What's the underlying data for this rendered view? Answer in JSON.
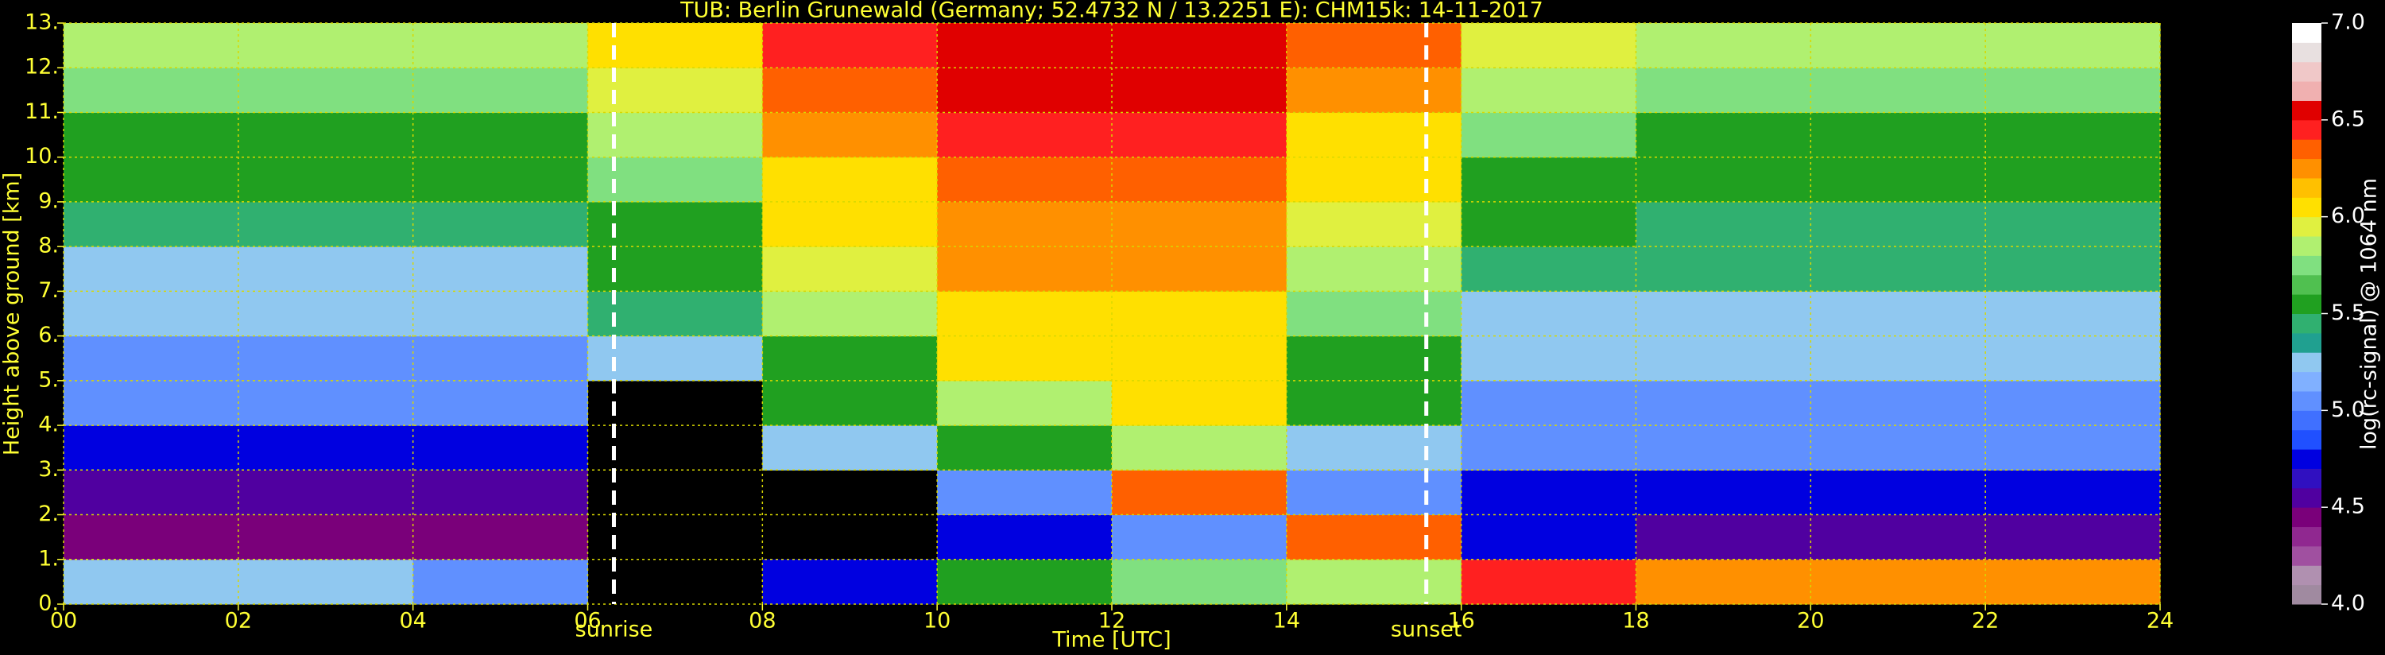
{
  "chart_data": {
    "type": "heatmap",
    "title": "TUB: Berlin Grunewald (Germany; 52.4732 N / 13.2251 E):    CHM15k: 14-11-2017",
    "xlabel": "Time [UTC]",
    "ylabel": "Height above ground [km]",
    "colorbar_label": "log(rc-signal) @ 1064 nm",
    "xlim": [
      0,
      24
    ],
    "ylim": [
      0,
      13
    ],
    "xticks": [
      {
        "value": 0,
        "label": "00"
      },
      {
        "value": 2,
        "label": "02"
      },
      {
        "value": 4,
        "label": "04"
      },
      {
        "value": 6,
        "label": "06"
      },
      {
        "value": 8,
        "label": "08"
      },
      10,
      12,
      14,
      16,
      18,
      20,
      22,
      24
    ],
    "yticks": [
      {
        "value": 0,
        "label": "0."
      },
      {
        "value": 1,
        "label": "1."
      },
      {
        "value": 2,
        "label": "2."
      },
      {
        "value": 3,
        "label": "3."
      },
      {
        "value": 4,
        "label": "4."
      },
      {
        "value": 5,
        "label": "5."
      },
      {
        "value": 6,
        "label": "6."
      },
      {
        "value": 7,
        "label": "7."
      },
      {
        "value": 8,
        "label": "8."
      },
      {
        "value": 9,
        "label": "9."
      },
      {
        "value": 10,
        "label": "10."
      },
      {
        "value": 11,
        "label": "11."
      },
      {
        "value": 12,
        "label": "12."
      },
      {
        "value": 13,
        "label": "13."
      }
    ],
    "grid": true,
    "grid_color": "#d8d800",
    "text_color": "#ffff33",
    "xbins": [
      0,
      2,
      4,
      6,
      8,
      10,
      12,
      14,
      16,
      18,
      20,
      22,
      24
    ],
    "ybins": [
      0,
      1,
      2,
      3,
      4,
      5,
      6,
      7,
      8,
      9,
      10,
      11,
      12,
      13
    ],
    "z": [
      [
        5.2,
        5.2,
        5.1,
        null,
        4.8,
        5.5,
        5.7,
        5.8,
        6.4,
        6.2,
        6.2,
        6.2
      ],
      [
        4.4,
        4.4,
        4.4,
        null,
        null,
        4.8,
        5.0,
        6.3,
        4.7,
        4.6,
        4.6,
        4.6
      ],
      [
        4.6,
        4.6,
        4.6,
        null,
        null,
        5.0,
        6.3,
        5.0,
        4.8,
        4.8,
        4.8,
        4.8
      ],
      [
        4.8,
        4.8,
        4.8,
        null,
        5.2,
        5.6,
        5.8,
        5.3,
        5.0,
        5.0,
        5.0,
        5.0
      ],
      [
        5.0,
        5.0,
        5.0,
        null,
        5.5,
        5.8,
        6.0,
        5.5,
        5.1,
        5.1,
        5.1,
        5.1
      ],
      [
        5.1,
        5.1,
        5.1,
        5.3,
        5.6,
        6.0,
        6.0,
        5.6,
        5.2,
        5.2,
        5.2,
        5.2
      ],
      [
        5.2,
        5.2,
        5.2,
        5.4,
        5.8,
        6.1,
        6.1,
        5.7,
        5.3,
        5.3,
        5.3,
        5.3
      ],
      [
        5.3,
        5.3,
        5.3,
        5.5,
        5.9,
        6.2,
        6.2,
        5.8,
        5.4,
        5.4,
        5.4,
        5.4
      ],
      [
        5.4,
        5.4,
        5.4,
        5.6,
        6.0,
        6.2,
        6.2,
        5.9,
        5.5,
        5.4,
        5.4,
        5.4
      ],
      [
        5.5,
        5.5,
        5.5,
        5.7,
        6.1,
        6.3,
        6.3,
        6.0,
        5.6,
        5.5,
        5.5,
        5.5
      ],
      [
        5.6,
        5.6,
        5.6,
        5.8,
        6.2,
        6.4,
        6.4,
        6.1,
        5.7,
        5.6,
        5.6,
        5.6
      ],
      [
        5.7,
        5.7,
        5.7,
        5.9,
        6.3,
        6.5,
        6.5,
        6.2,
        5.8,
        5.7,
        5.7,
        5.7
      ],
      [
        5.8,
        5.8,
        5.8,
        6.0,
        6.4,
        6.6,
        6.6,
        6.3,
        5.9,
        5.8,
        5.8,
        5.8
      ]
    ],
    "zlim": [
      4,
      7
    ],
    "zticks": [
      {
        "value": 4,
        "label": "4.0"
      },
      {
        "value": 4.5,
        "label": "4.5"
      },
      {
        "value": 5,
        "label": "5.0"
      },
      {
        "value": 5.5,
        "label": "5.5"
      },
      {
        "value": 6,
        "label": "6.0"
      },
      {
        "value": 6.5,
        "label": "6.5"
      },
      {
        "value": 7,
        "label": "7.0"
      }
    ],
    "colors": [
      "#a08aa0",
      "#b090b0",
      "#a050a0",
      "#902890",
      "#7a007a",
      "#5000a0",
      "#3010c0",
      "#0000e0",
      "#2050ff",
      "#4070ff",
      "#6090ff",
      "#80b0ff",
      "#90c8f0",
      "#20a090",
      "#30b070",
      "#20a020",
      "#50c050",
      "#80e080",
      "#b0f070",
      "#e0f040",
      "#ffe000",
      "#ffc000",
      "#ff9000",
      "#ff6000",
      "#ff2020",
      "#e00000",
      "#f0b0b0",
      "#f0c8c8",
      "#e8e0e0",
      "#ffffff"
    ],
    "vlines": [
      {
        "x": 6.3,
        "label": "sunrise"
      },
      {
        "x": 15.6,
        "label": "sunset"
      }
    ],
    "vline_color": "#ffffff"
  }
}
